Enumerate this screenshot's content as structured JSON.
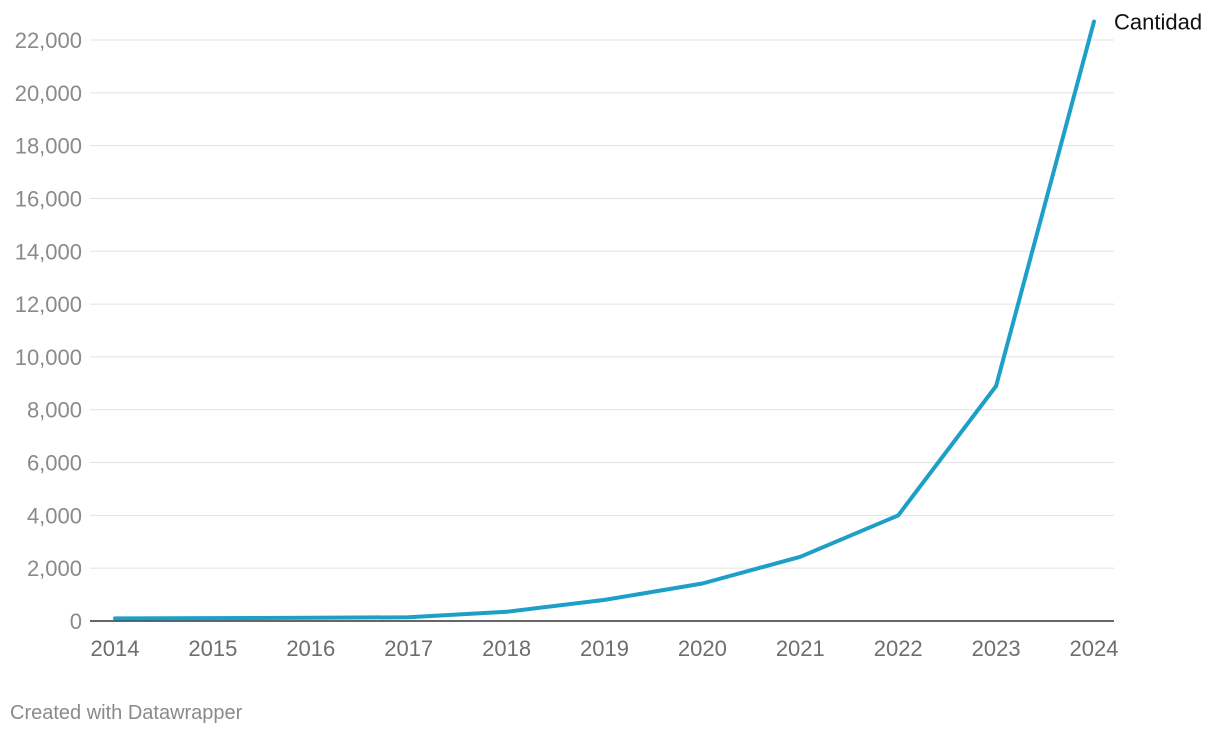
{
  "chart_data": {
    "type": "line",
    "title": "",
    "xlabel": "",
    "ylabel": "",
    "categories": [
      "2014",
      "2015",
      "2016",
      "2017",
      "2018",
      "2019",
      "2020",
      "2021",
      "2022",
      "2023",
      "2024"
    ],
    "series": [
      {
        "name": "Cantidad",
        "color": "#1d9fc8",
        "values": [
          100,
          110,
          120,
          140,
          350,
          800,
          1420,
          2430,
          4000,
          8900,
          22700
        ]
      }
    ],
    "ylim": [
      0,
      22000
    ],
    "yticks": [
      0,
      2000,
      4000,
      6000,
      8000,
      10000,
      12000,
      14000,
      16000,
      18000,
      20000,
      22000
    ],
    "ytick_labels": [
      "0",
      "2,000",
      "4,000",
      "6,000",
      "8,000",
      "10,000",
      "12,000",
      "14,000",
      "16,000",
      "18,000",
      "20,000",
      "22,000"
    ],
    "grid": true,
    "legend": "end-of-line label"
  },
  "colors": {
    "line": "#1d9fc8",
    "grid": "#e2e2e2",
    "baseline": "#333333",
    "tick_text": "#8a8a8a",
    "series_label_text": "#111111"
  },
  "footer": {
    "credit": "Created with Datawrapper"
  }
}
